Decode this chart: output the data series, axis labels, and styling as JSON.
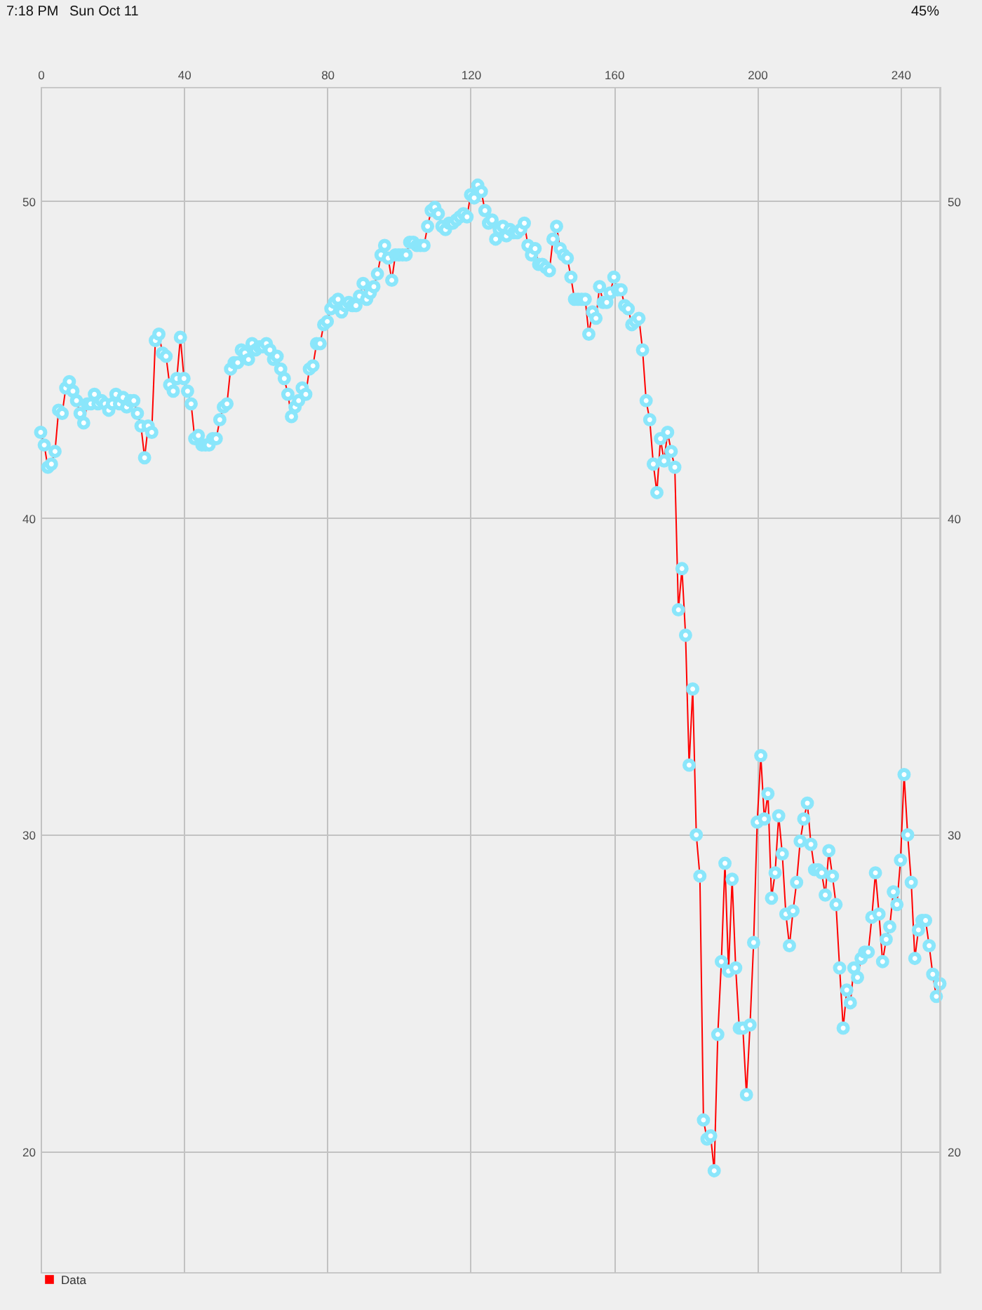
{
  "chart_data": {
    "type": "line",
    "annotations": [
      "7:18 PM",
      "Sun Oct 11",
      "45%"
    ],
    "x": [
      0,
      1,
      2,
      3,
      4,
      5,
      6,
      7,
      8,
      9,
      10,
      11,
      12,
      13,
      14,
      15,
      16,
      17,
      18,
      19,
      20,
      21,
      22,
      23,
      24,
      25,
      26,
      27,
      28,
      29,
      30,
      31,
      32,
      33,
      34,
      35,
      36,
      37,
      38,
      39,
      40,
      41,
      42,
      43,
      44,
      45,
      46,
      47,
      48,
      49,
      50,
      51,
      52,
      53,
      54,
      55,
      56,
      57,
      58,
      59,
      60,
      61,
      62,
      63,
      64,
      65,
      66,
      67,
      68,
      69,
      70,
      71,
      72,
      73,
      74,
      75,
      76,
      77,
      78,
      79,
      80,
      81,
      82,
      83,
      84,
      85,
      86,
      87,
      88,
      89,
      90,
      91,
      92,
      93,
      94,
      95,
      96,
      97,
      98,
      99,
      100,
      101,
      102,
      103,
      104,
      105,
      106,
      107,
      108,
      109,
      110,
      111,
      112,
      113,
      114,
      115,
      116,
      117,
      118,
      119,
      120,
      121,
      122,
      123,
      124,
      125,
      126,
      127,
      128,
      129,
      130,
      131,
      132,
      133,
      134,
      135,
      136,
      137,
      138,
      139,
      140,
      141,
      142,
      143,
      144,
      145,
      146,
      147,
      148,
      149,
      150,
      151,
      152,
      153,
      154,
      155,
      156,
      157,
      158,
      159,
      160,
      161,
      162,
      163,
      164,
      165,
      166,
      167,
      168,
      169,
      170,
      171,
      172,
      173,
      174,
      175,
      176,
      177,
      178,
      179,
      180,
      181,
      182,
      183,
      184,
      185,
      186,
      187,
      188,
      189,
      190,
      191,
      192,
      193,
      194,
      195,
      196,
      197,
      198,
      199,
      200,
      201,
      202,
      203,
      204,
      205,
      206,
      207,
      208,
      209,
      210,
      211,
      212,
      213,
      214,
      215,
      216,
      217,
      218,
      219,
      220,
      221,
      222,
      223,
      224,
      225,
      226,
      227,
      228,
      229,
      230,
      231,
      232,
      233,
      234,
      235,
      236,
      237,
      238,
      239,
      240,
      241,
      242,
      243,
      244,
      245,
      246,
      247,
      248,
      249,
      250,
      251
    ],
    "series": [
      {
        "name": "Data",
        "color": "#ff0000",
        "values": [
          42.7,
          42.3,
          41.6,
          41.7,
          42.1,
          43.4,
          43.3,
          44.1,
          44.3,
          44.0,
          43.7,
          43.3,
          43.0,
          43.6,
          43.6,
          43.9,
          43.6,
          43.7,
          43.6,
          43.4,
          43.6,
          43.9,
          43.6,
          43.8,
          43.5,
          43.7,
          43.7,
          43.3,
          42.9,
          41.9,
          42.9,
          42.7,
          45.6,
          45.8,
          45.2,
          45.1,
          44.2,
          44.0,
          44.4,
          45.7,
          44.4,
          44.0,
          43.6,
          42.5,
          42.6,
          42.3,
          42.3,
          42.3,
          42.5,
          42.5,
          43.1,
          43.5,
          43.6,
          44.7,
          44.9,
          44.9,
          45.3,
          45.2,
          45.0,
          45.5,
          45.3,
          45.4,
          45.4,
          45.5,
          45.3,
          45.0,
          45.1,
          44.7,
          44.4,
          43.9,
          43.2,
          43.5,
          43.7,
          44.1,
          43.9,
          44.7,
          44.8,
          45.5,
          45.5,
          46.1,
          46.2,
          46.6,
          46.8,
          46.9,
          46.5,
          46.7,
          46.8,
          46.7,
          46.7,
          47.0,
          47.4,
          46.9,
          47.1,
          47.3,
          47.7,
          48.3,
          48.6,
          48.2,
          47.5,
          48.3,
          48.3,
          48.3,
          48.3,
          48.7,
          48.7,
          48.6,
          48.6,
          48.6,
          49.2,
          49.7,
          49.8,
          49.6,
          49.2,
          49.1,
          49.3,
          49.3,
          49.4,
          49.5,
          49.6,
          49.5,
          50.2,
          50.1,
          50.5,
          50.3,
          49.7,
          49.3,
          49.4,
          48.8,
          49.1,
          49.2,
          48.9,
          49.1,
          49.0,
          49.0,
          49.1,
          49.3,
          48.6,
          48.3,
          48.5,
          48.0,
          48.0,
          47.9,
          47.8,
          48.8,
          49.2,
          48.5,
          48.3,
          48.2,
          47.6,
          46.9,
          46.9,
          46.9,
          46.9,
          45.8,
          46.5,
          46.3,
          47.3,
          46.8,
          46.8,
          47.1,
          47.6,
          47.2,
          47.2,
          46.7,
          46.6,
          46.1,
          46.2,
          46.3,
          45.3,
          43.7,
          43.1,
          41.7,
          40.8,
          42.5,
          41.8,
          42.7,
          42.1,
          41.6,
          37.1,
          38.4,
          36.3,
          32.2,
          34.6,
          30.0,
          28.7,
          21.0,
          20.4,
          20.5,
          19.4,
          23.7,
          26.0,
          29.1,
          25.7,
          28.6,
          25.8,
          23.9,
          23.9,
          21.8,
          24.0,
          26.6,
          30.4,
          32.5,
          30.5,
          31.3,
          28.0,
          28.8,
          30.6,
          29.4,
          27.5,
          26.5,
          27.6,
          28.5,
          29.8,
          30.5,
          31.0,
          29.7,
          28.9,
          28.9,
          28.8,
          28.1,
          29.5,
          28.7,
          27.8,
          25.8,
          23.9,
          25.1,
          24.7,
          25.8,
          25.5,
          26.1,
          26.3,
          26.3,
          27.4,
          28.8,
          27.5,
          26.0,
          26.7,
          27.1,
          28.2,
          27.8,
          29.2,
          31.9,
          30.0,
          28.5,
          26.1,
          27.0,
          27.3,
          27.3,
          26.5,
          25.6,
          24.9,
          25.3
        ]
      }
    ],
    "xlim": [
      0,
      251
    ],
    "xticks": [
      0,
      40,
      80,
      120,
      160,
      200,
      240
    ],
    "ylim": [
      16.2,
      53.6
    ],
    "yticks": [
      20,
      30,
      40,
      50
    ],
    "y2lim": [
      16.2,
      53.6
    ],
    "y2ticks": [
      20,
      30,
      40,
      50
    ],
    "grid": true,
    "legend": "bottom left",
    "marker": "circle",
    "line_style": "solid"
  }
}
